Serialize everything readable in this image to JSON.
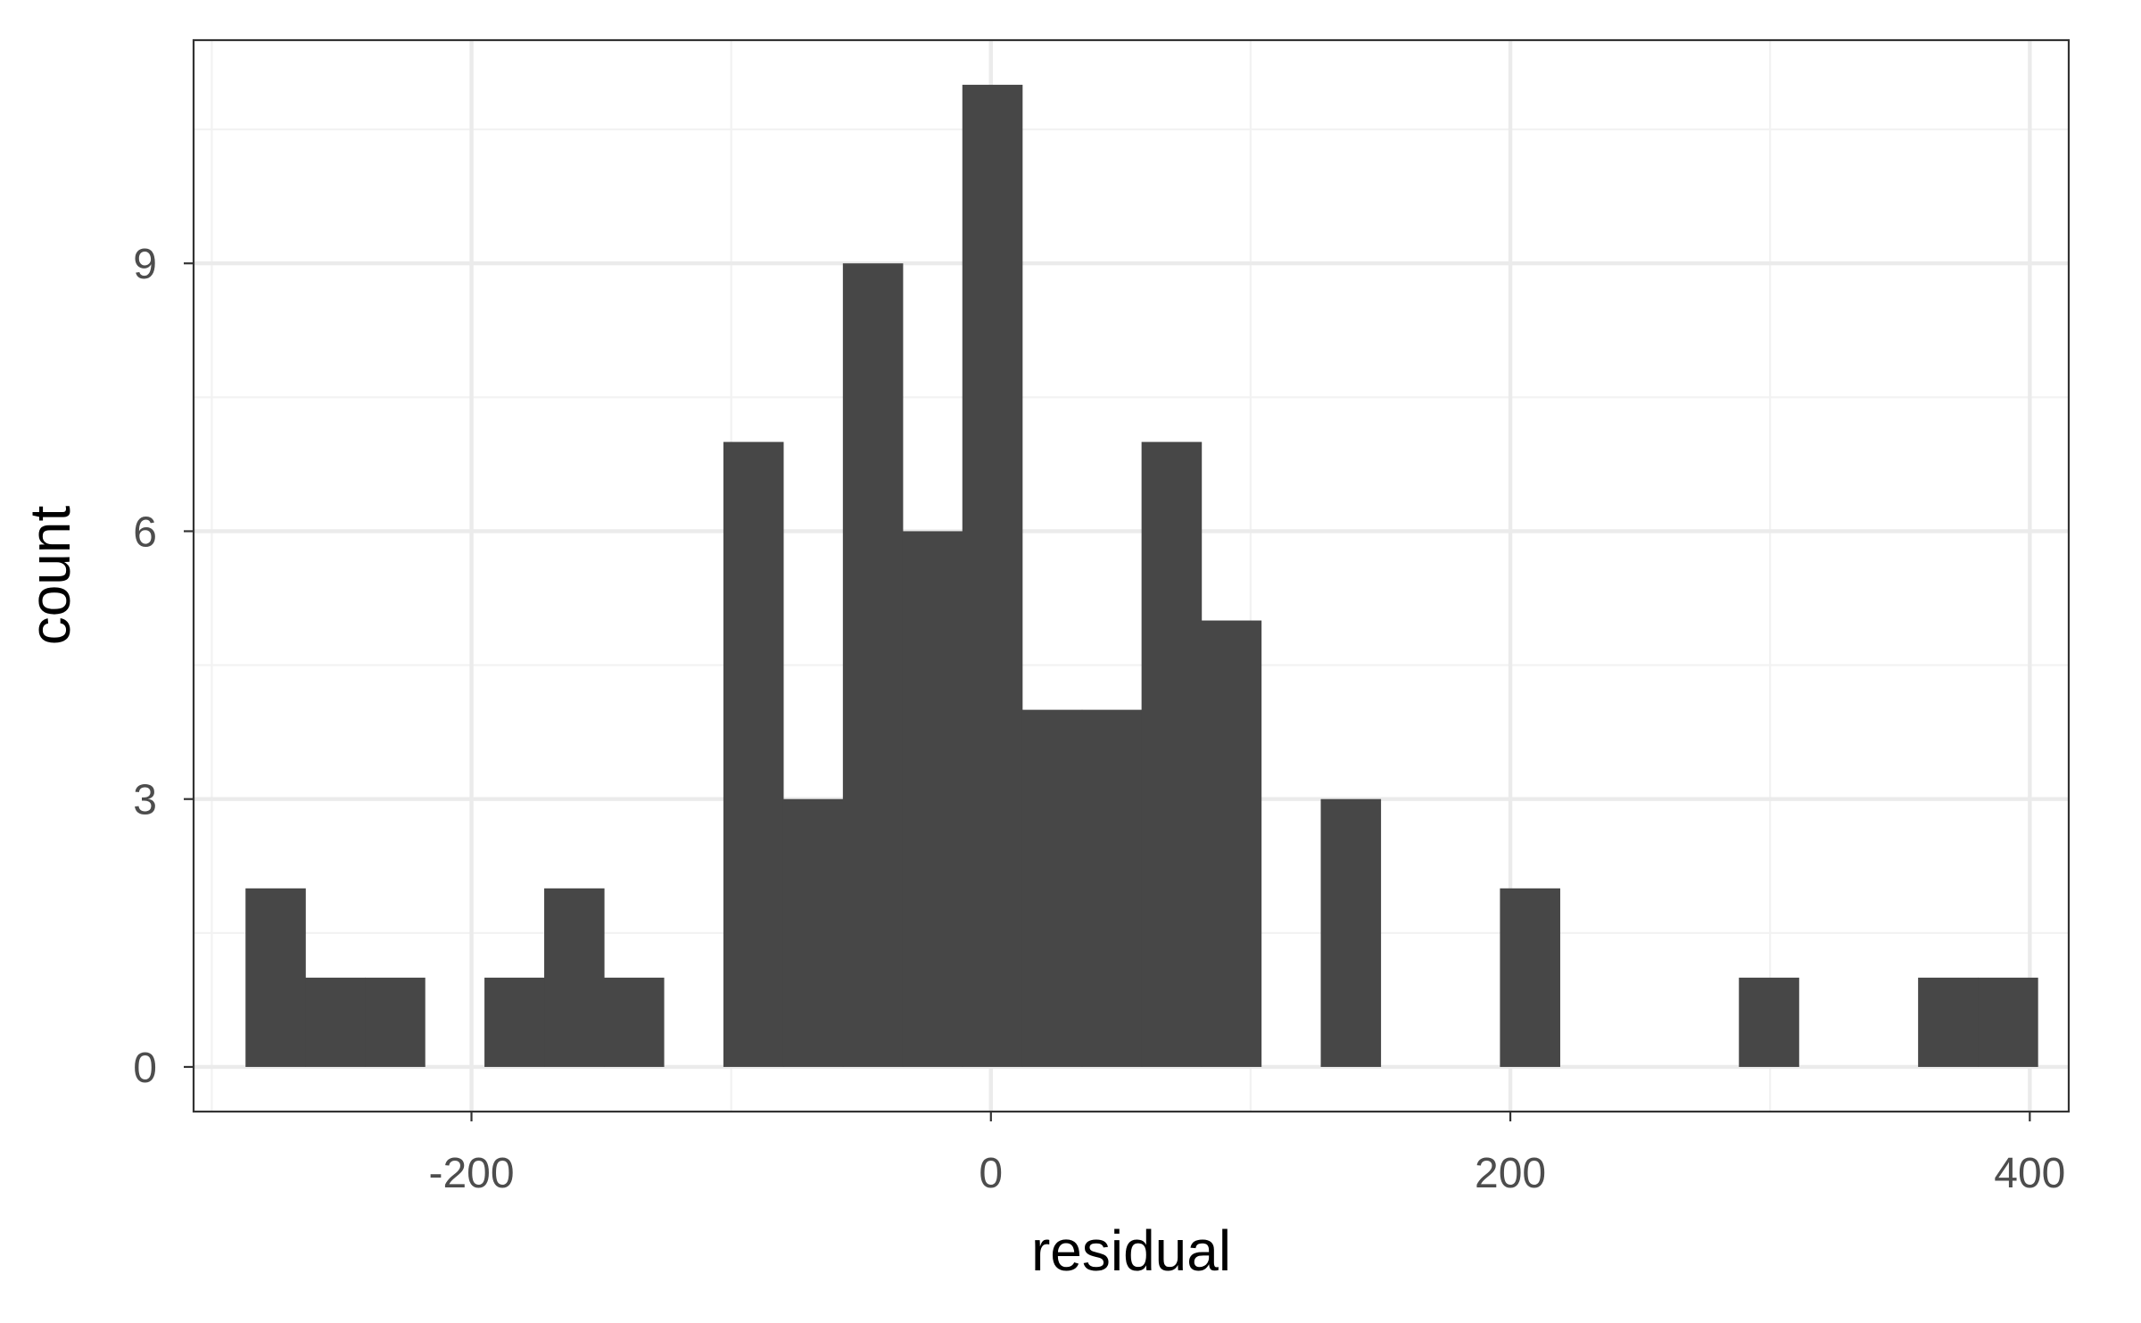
{
  "chart_data": {
    "type": "bar",
    "subtype": "histogram",
    "title": "",
    "xlabel": "residual",
    "ylabel": "count",
    "xlim": [
      -307,
      415
    ],
    "ylim": [
      -0.5,
      11.5
    ],
    "xticks": [
      -200,
      0,
      200,
      400
    ],
    "xtick_labels": [
      "-200",
      "0",
      "200",
      "400"
    ],
    "yticks": [
      0,
      3,
      6,
      9
    ],
    "ytick_labels": [
      "0",
      "3",
      "6",
      "9"
    ],
    "x_minor_gridlines": [
      -300,
      -100,
      100,
      300
    ],
    "y_minor_gridlines": [
      1.5,
      4.5,
      7.5,
      10.5
    ],
    "grid": true,
    "legend": "none",
    "bin_width": 23,
    "bins": [
      {
        "x0": -287,
        "x1": -264,
        "count": 2
      },
      {
        "x0": -264,
        "x1": -241,
        "count": 1
      },
      {
        "x0": -241,
        "x1": -218,
        "count": 1
      },
      {
        "x0": -218,
        "x1": -195,
        "count": 0
      },
      {
        "x0": -195,
        "x1": -172,
        "count": 1
      },
      {
        "x0": -172,
        "x1": -149,
        "count": 2
      },
      {
        "x0": -149,
        "x1": -126,
        "count": 1
      },
      {
        "x0": -126,
        "x1": -103,
        "count": 0
      },
      {
        "x0": -103,
        "x1": -80,
        "count": 7
      },
      {
        "x0": -80,
        "x1": -57,
        "count": 3
      },
      {
        "x0": -57,
        "x1": -34,
        "count": 9
      },
      {
        "x0": -34,
        "x1": -11,
        "count": 6
      },
      {
        "x0": -11,
        "x1": 12,
        "count": 11
      },
      {
        "x0": 12,
        "x1": 35,
        "count": 4
      },
      {
        "x0": 35,
        "x1": 58,
        "count": 4
      },
      {
        "x0": 58,
        "x1": 81,
        "count": 7
      },
      {
        "x0": 81,
        "x1": 104,
        "count": 5
      },
      {
        "x0": 104,
        "x1": 127,
        "count": 0
      },
      {
        "x0": 127,
        "x1": 150,
        "count": 3
      },
      {
        "x0": 150,
        "x1": 173,
        "count": 0
      },
      {
        "x0": 173,
        "x1": 196,
        "count": 0
      },
      {
        "x0": 196,
        "x1": 219,
        "count": 2
      },
      {
        "x0": 219,
        "x1": 242,
        "count": 0
      },
      {
        "x0": 242,
        "x1": 265,
        "count": 0
      },
      {
        "x0": 265,
        "x1": 288,
        "count": 0
      },
      {
        "x0": 288,
        "x1": 311,
        "count": 1
      },
      {
        "x0": 311,
        "x1": 334,
        "count": 0
      },
      {
        "x0": 334,
        "x1": 357,
        "count": 0
      },
      {
        "x0": 357,
        "x1": 380,
        "count": 1
      },
      {
        "x0": 380,
        "x1": 403,
        "count": 1
      }
    ],
    "colors": {
      "bar_fill": "#474747",
      "panel_background": "#ffffff",
      "grid_major": "#ebebeb",
      "grid_minor": "#f2f2f2",
      "panel_border": "#333333",
      "tick_label": "#4d4d4d",
      "axis_title": "#000000"
    }
  }
}
